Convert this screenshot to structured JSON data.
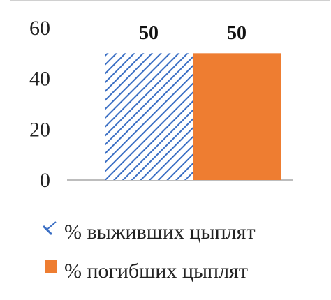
{
  "chart_data": {
    "type": "bar",
    "categories": [
      "% выживших цыплят",
      "% погибших цыплят"
    ],
    "values": [
      50,
      50
    ],
    "ylim": [
      0,
      60
    ],
    "yticks": [
      0,
      20,
      40,
      60
    ],
    "grid": false,
    "legend_placement": "bottom",
    "data_labels": [
      "50",
      "50"
    ],
    "series": [
      {
        "name": "% выживших цыплят",
        "value": 50,
        "color": "#3b6fc4",
        "fill": "diagonal-hatch"
      },
      {
        "name": "% погибших цыплят",
        "value": 50,
        "color": "#ee7d31",
        "fill": "solid"
      }
    ]
  }
}
